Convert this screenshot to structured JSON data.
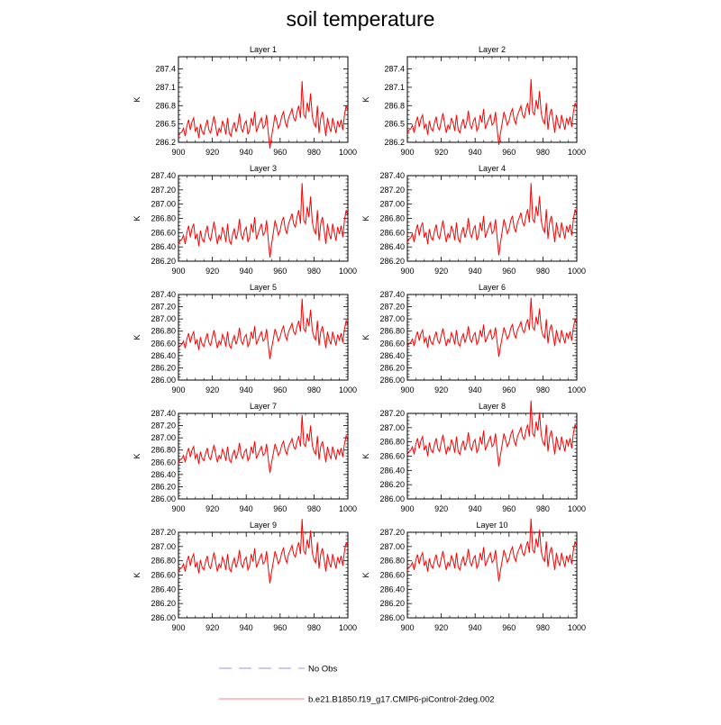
{
  "title": "soil temperature",
  "line_color": "#ff0000",
  "obs_color": "#aaaaee",
  "legend": [
    {
      "label": "No Obs",
      "style": "dashed",
      "color": "#aaaaee"
    },
    {
      "label": "b.e21.B1850.f19_g17.CMIP6-piControl-2deg.002",
      "style": "solid",
      "color": "#ff9999"
    }
  ],
  "chart_data": [
    {
      "type": "line",
      "title": "Layer 1",
      "ylabel": "K",
      "xlim": [
        900,
        1000
      ],
      "xticks": [
        900,
        920,
        940,
        960,
        980,
        1000
      ],
      "ylim": [
        286.2,
        287.6
      ],
      "yticks": [
        286.2,
        286.5,
        286.8,
        287.1,
        287.4
      ],
      "ytick_labels": [
        "286.2",
        "286.5",
        "286.8",
        "287.1",
        "287.4"
      ],
      "x_start": 900,
      "x_step": 1,
      "offset": 0.25,
      "scale": 1.0
    },
    {
      "type": "line",
      "title": "Layer 2",
      "ylabel": "K",
      "xlim": [
        900,
        1000
      ],
      "xticks": [
        900,
        920,
        940,
        960,
        980,
        1000
      ],
      "ylim": [
        286.2,
        287.6
      ],
      "yticks": [
        286.2,
        286.5,
        286.8,
        287.1,
        287.4
      ],
      "ytick_labels": [
        "286.2",
        "286.5",
        "286.8",
        "287.1",
        "287.4"
      ],
      "x_start": 900,
      "x_step": 1,
      "offset": 0.2,
      "scale": 0.98
    },
    {
      "type": "line",
      "title": "Layer 3",
      "ylabel": "K",
      "xlim": [
        900,
        1000
      ],
      "xticks": [
        900,
        920,
        940,
        960,
        980,
        1000
      ],
      "ylim": [
        286.2,
        287.4
      ],
      "yticks": [
        286.2,
        286.4,
        286.6,
        286.8,
        287.0,
        287.2,
        287.4
      ],
      "ytick_labels": [
        "286.20",
        "286.40",
        "286.60",
        "286.80",
        "287.00",
        "287.20",
        "287.40"
      ],
      "x_start": 900,
      "x_step": 1,
      "offset": 0.12,
      "scale": 0.95
    },
    {
      "type": "line",
      "title": "Layer 4",
      "ylabel": "K",
      "xlim": [
        900,
        1000
      ],
      "xticks": [
        900,
        920,
        940,
        960,
        980,
        1000
      ],
      "ylim": [
        286.2,
        287.4
      ],
      "yticks": [
        286.2,
        286.4,
        286.6,
        286.8,
        287.0,
        287.2,
        287.4
      ],
      "ytick_labels": [
        "286.20",
        "286.40",
        "286.60",
        "286.80",
        "287.00",
        "287.20",
        "287.40"
      ],
      "x_start": 900,
      "x_step": 1,
      "offset": 0.1,
      "scale": 0.92
    },
    {
      "type": "line",
      "title": "Layer 5",
      "ylabel": "K",
      "xlim": [
        900,
        1000
      ],
      "xticks": [
        900,
        920,
        940,
        960,
        980,
        1000
      ],
      "ylim": [
        286.0,
        287.4
      ],
      "yticks": [
        286.0,
        286.2,
        286.4,
        286.6,
        286.8,
        287.0,
        287.2,
        287.4
      ],
      "ytick_labels": [
        "286.00",
        "286.20",
        "286.40",
        "286.60",
        "286.80",
        "287.00",
        "287.20",
        "287.40"
      ],
      "x_start": 900,
      "x_step": 1,
      "offset": 0.05,
      "scale": 0.9
    },
    {
      "type": "line",
      "title": "Layer 6",
      "ylabel": "K",
      "xlim": [
        900,
        1000
      ],
      "xticks": [
        900,
        920,
        940,
        960,
        980,
        1000
      ],
      "ylim": [
        286.0,
        287.4
      ],
      "yticks": [
        286.0,
        286.2,
        286.4,
        286.6,
        286.8,
        287.0,
        287.2,
        287.4
      ],
      "ytick_labels": [
        "286.00",
        "286.20",
        "286.40",
        "286.60",
        "286.80",
        "287.00",
        "287.20",
        "287.40"
      ],
      "x_start": 900,
      "x_step": 1,
      "offset": 0.02,
      "scale": 0.88
    },
    {
      "type": "line",
      "title": "Layer 7",
      "ylabel": "K",
      "xlim": [
        900,
        1000
      ],
      "xticks": [
        900,
        920,
        940,
        960,
        980,
        1000
      ],
      "ylim": [
        286.0,
        287.4
      ],
      "yticks": [
        286.0,
        286.2,
        286.4,
        286.6,
        286.8,
        287.0,
        287.2,
        287.4
      ],
      "ytick_labels": [
        "286.00",
        "286.20",
        "286.40",
        "286.60",
        "286.80",
        "287.00",
        "287.20",
        "287.40"
      ],
      "x_start": 900,
      "x_step": 1,
      "offset": -0.02,
      "scale": 0.86
    },
    {
      "type": "line",
      "title": "Layer 8",
      "ylabel": "K",
      "xlim": [
        900,
        1000
      ],
      "xticks": [
        900,
        920,
        940,
        960,
        980,
        1000
      ],
      "ylim": [
        286.0,
        287.2
      ],
      "yticks": [
        286.0,
        286.2,
        286.4,
        286.6,
        286.8,
        287.0,
        287.2
      ],
      "ytick_labels": [
        "286.00",
        "286.20",
        "286.40",
        "286.60",
        "286.80",
        "287.00",
        "287.20"
      ],
      "x_start": 900,
      "x_step": 1,
      "offset": -0.04,
      "scale": 0.84
    },
    {
      "type": "line",
      "title": "Layer 9",
      "ylabel": "K",
      "xlim": [
        900,
        1000
      ],
      "xticks": [
        900,
        920,
        940,
        960,
        980,
        1000
      ],
      "ylim": [
        286.0,
        287.2
      ],
      "yticks": [
        286.0,
        286.2,
        286.4,
        286.6,
        286.8,
        287.0,
        287.2
      ],
      "ytick_labels": [
        "286.00",
        "286.20",
        "286.40",
        "286.60",
        "286.80",
        "287.00",
        "287.20"
      ],
      "x_start": 900,
      "x_step": 1,
      "offset": -0.06,
      "scale": 0.82
    },
    {
      "type": "line",
      "title": "Layer 10",
      "ylabel": "K",
      "xlim": [
        900,
        1000
      ],
      "xticks": [
        900,
        920,
        940,
        960,
        980,
        1000
      ],
      "ylim": [
        286.0,
        287.2
      ],
      "yticks": [
        286.0,
        286.2,
        286.4,
        286.6,
        286.8,
        287.0,
        287.2
      ],
      "ytick_labels": [
        "286.00",
        "286.20",
        "286.40",
        "286.60",
        "286.80",
        "287.00",
        "287.20"
      ],
      "x_start": 900,
      "x_step": 1,
      "offset": -0.08,
      "scale": 0.8
    }
  ],
  "base_series": [
    286.55,
    286.6,
    286.62,
    286.68,
    286.55,
    286.72,
    286.82,
    286.65,
    286.78,
    286.85,
    286.62,
    286.7,
    286.52,
    286.75,
    286.62,
    286.58,
    286.72,
    286.82,
    286.65,
    286.6,
    286.75,
    286.88,
    286.7,
    286.55,
    286.68,
    286.62,
    286.8,
    286.72,
    286.58,
    286.85,
    286.6,
    286.55,
    286.7,
    286.78,
    286.62,
    286.72,
    286.92,
    286.68,
    286.62,
    286.75,
    286.8,
    286.58,
    286.65,
    286.85,
    286.72,
    286.95,
    286.62,
    286.7,
    286.78,
    286.85,
    286.68,
    286.72,
    286.9,
    286.62,
    286.35,
    286.55,
    286.72,
    286.9,
    286.8,
    286.68,
    286.75,
    286.88,
    286.95,
    286.78,
    286.7,
    286.85,
    286.92,
    287.0,
    286.85,
    286.8,
    286.95,
    287.05,
    286.85,
    287.45,
    286.9,
    286.85,
    287.1,
    286.95,
    287.25,
    286.88,
    286.75,
    286.7,
    287.05,
    286.6,
    286.85,
    286.95,
    286.75,
    286.55,
    286.85,
    286.7,
    286.62,
    286.85,
    286.72,
    286.6,
    286.8,
    286.7,
    286.82,
    286.65,
    286.9,
    287.05,
    286.95
  ]
}
